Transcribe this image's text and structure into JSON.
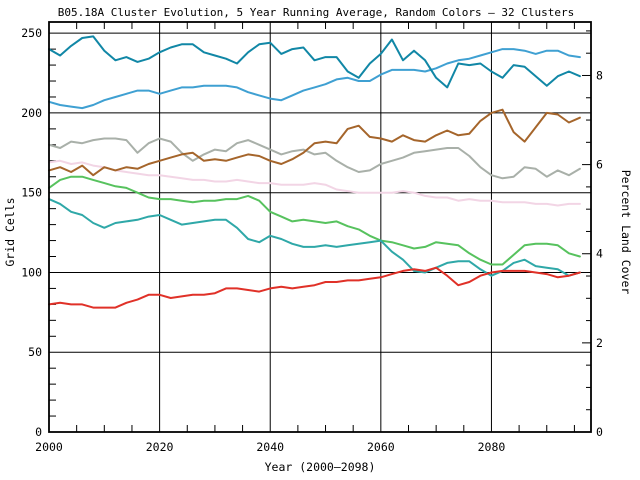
{
  "title": "B05.18A Cluster Evolution, 5 Year Running Average, Random Colors — 32 Clusters",
  "chart_data": {
    "type": "line",
    "title": "B05.18A Cluster Evolution, 5 Year Running Average, Random Colors — 32 Clusters",
    "xlabel": "Year (2000–2098)",
    "ylabel_left": "Grid Cells",
    "ylabel_right": "Percent Land Cover",
    "x_range": [
      2000,
      2098
    ],
    "y_left_range": [
      0,
      257
    ],
    "y_right_range": [
      0,
      9.2
    ],
    "x_ticks": {
      "major": [
        2000,
        2020,
        2040,
        2060,
        2080
      ],
      "minor_step": 5
    },
    "y_left_ticks": {
      "major": [
        0,
        50,
        100,
        150,
        200,
        250
      ],
      "minor_step": 10
    },
    "y_right_ticks": {
      "major": [
        0,
        2,
        4,
        6,
        8
      ],
      "minor_step": 0.5
    },
    "grid": true,
    "legend": "none",
    "background_color": "#ffffff",
    "axis_color": "#000000",
    "x": [
      2000,
      2002,
      2004,
      2006,
      2008,
      2010,
      2012,
      2014,
      2016,
      2018,
      2020,
      2022,
      2024,
      2026,
      2028,
      2030,
      2032,
      2034,
      2036,
      2038,
      2040,
      2042,
      2044,
      2046,
      2048,
      2050,
      2052,
      2054,
      2056,
      2058,
      2060,
      2062,
      2064,
      2066,
      2068,
      2070,
      2072,
      2074,
      2076,
      2078,
      2080,
      2082,
      2084,
      2086,
      2088,
      2090,
      2092,
      2094,
      2096
    ],
    "series": [
      {
        "name": "cluster-pink",
        "color": "#f2d5e5",
        "values": [
          169,
          170,
          168,
          169,
          167,
          166,
          164,
          163,
          162,
          161,
          161,
          160,
          159,
          158,
          158,
          157,
          157,
          158,
          157,
          156,
          156,
          155,
          155,
          155,
          156,
          155,
          152,
          151,
          150,
          150,
          150,
          150,
          151,
          150,
          148,
          147,
          147,
          145,
          146,
          145,
          145,
          144,
          144,
          144,
          143,
          143,
          142,
          143,
          143
        ]
      },
      {
        "name": "cluster-gray",
        "color": "#a9b0a9",
        "values": [
          180,
          178,
          182,
          181,
          183,
          184,
          184,
          183,
          175,
          181,
          184,
          182,
          175,
          170,
          174,
          177,
          176,
          181,
          183,
          180,
          177,
          174,
          176,
          177,
          174,
          175,
          170,
          166,
          163,
          164,
          168,
          170,
          172,
          175,
          176,
          177,
          178,
          178,
          173,
          166,
          161,
          159,
          160,
          166,
          165,
          160,
          164,
          161,
          165
        ]
      },
      {
        "name": "cluster-brown",
        "color": "#a5652b",
        "values": [
          164,
          166,
          163,
          167,
          161,
          166,
          164,
          166,
          165,
          168,
          170,
          172,
          174,
          175,
          170,
          171,
          170,
          172,
          174,
          173,
          170,
          168,
          171,
          175,
          181,
          182,
          181,
          190,
          192,
          185,
          184,
          182,
          186,
          183,
          182,
          186,
          189,
          186,
          187,
          195,
          200,
          202,
          188,
          182,
          191,
          200,
          199,
          194,
          197
        ]
      },
      {
        "name": "cluster-light-blue",
        "color": "#3fa0d2",
        "values": [
          207,
          205,
          204,
          203,
          205,
          208,
          210,
          212,
          214,
          214,
          212,
          214,
          216,
          216,
          217,
          217,
          217,
          216,
          213,
          211,
          209,
          208,
          211,
          214,
          216,
          218,
          221,
          222,
          220,
          220,
          224,
          227,
          227,
          227,
          226,
          228,
          231,
          233,
          234,
          236,
          238,
          240,
          240,
          239,
          237,
          239,
          239,
          236,
          235
        ]
      },
      {
        "name": "cluster-dark-teal",
        "color": "#1187a6",
        "values": [
          240,
          236,
          242,
          247,
          248,
          239,
          233,
          235,
          232,
          234,
          238,
          241,
          243,
          243,
          238,
          236,
          234,
          231,
          238,
          243,
          244,
          237,
          240,
          241,
          233,
          235,
          235,
          226,
          222,
          231,
          237,
          246,
          233,
          239,
          233,
          222,
          216,
          231,
          230,
          231,
          226,
          222,
          230,
          229,
          223,
          217,
          223,
          226,
          223
        ]
      },
      {
        "name": "cluster-green",
        "color": "#57c25e",
        "values": [
          153,
          158,
          160,
          160,
          158,
          156,
          154,
          153,
          150,
          147,
          146,
          146,
          145,
          144,
          145,
          145,
          146,
          146,
          148,
          145,
          138,
          135,
          132,
          133,
          132,
          131,
          132,
          129,
          127,
          123,
          120,
          119,
          117,
          115,
          116,
          119,
          118,
          117,
          112,
          108,
          105,
          105,
          111,
          117,
          118,
          118,
          117,
          112,
          110
        ]
      },
      {
        "name": "cluster-teal",
        "color": "#2fa8a8",
        "values": [
          146,
          143,
          138,
          136,
          131,
          128,
          131,
          132,
          133,
          135,
          136,
          133,
          130,
          131,
          132,
          133,
          133,
          128,
          121,
          119,
          123,
          121,
          118,
          116,
          116,
          117,
          116,
          117,
          118,
          119,
          120,
          113,
          108,
          101,
          100,
          103,
          106,
          107,
          107,
          102,
          98,
          101,
          106,
          108,
          104,
          103,
          102,
          98,
          100
        ]
      },
      {
        "name": "cluster-red",
        "color": "#e03128",
        "values": [
          80,
          81,
          80,
          80,
          78,
          78,
          78,
          81,
          83,
          86,
          86,
          84,
          85,
          86,
          86,
          87,
          90,
          90,
          89,
          88,
          90,
          91,
          90,
          91,
          92,
          94,
          94,
          95,
          95,
          96,
          97,
          99,
          101,
          102,
          101,
          103,
          98,
          92,
          94,
          98,
          100,
          101,
          101,
          101,
          100,
          99,
          97,
          98,
          100
        ]
      }
    ]
  }
}
